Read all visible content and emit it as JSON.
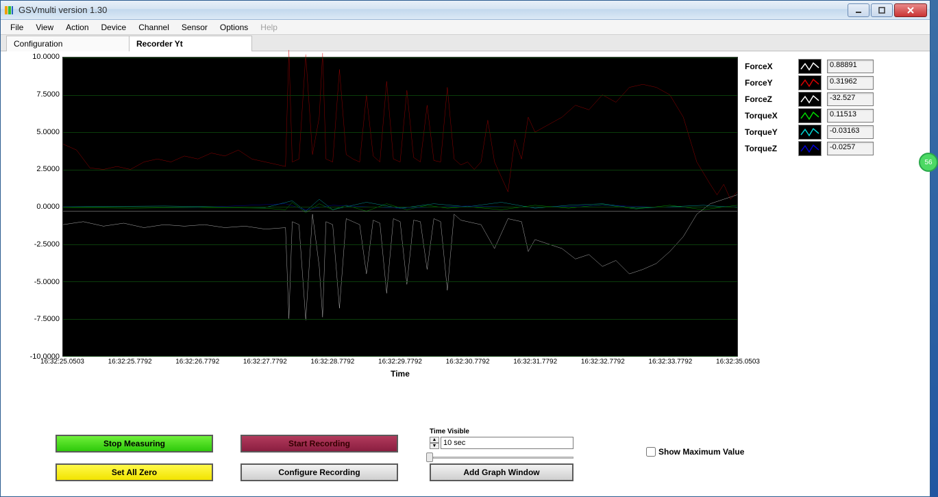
{
  "window": {
    "title": "GSVmulti version 1.30"
  },
  "menu": {
    "items": [
      "File",
      "View",
      "Action",
      "Device",
      "Channel",
      "Sensor",
      "Options",
      "Help"
    ],
    "disabled_index": 7
  },
  "tabs": {
    "items": [
      "Configuration",
      "Recorder Yt"
    ],
    "active_index": 1
  },
  "chart": {
    "type": "line",
    "background_color": "#000000",
    "grid_color": "#0b3d0b",
    "xlabel": "Time",
    "ylim": [
      -10,
      10
    ],
    "ytick_step": 2.5,
    "yticks": [
      "10.0000",
      "7.5000",
      "5.0000",
      "2.5000",
      "0.0000",
      "-2.5000",
      "-5.0000",
      "-7.5000",
      "-10.0000"
    ],
    "xticks": [
      "16:32:25.0503",
      "16:32:25.7792",
      "16:32:26.7792",
      "16:32:27.7792",
      "16:32:28.7792",
      "16:32:29.7792",
      "16:32:30.7792",
      "16:32:31.7792",
      "16:32:32.7792",
      "16:32:33.7792",
      "16:32:35.0503"
    ],
    "series": [
      {
        "name": "ForceX",
        "color": "#ffffff",
        "value": "0.88891",
        "points": [
          [
            0,
            -1.2
          ],
          [
            3,
            -1.0
          ],
          [
            6,
            -1.3
          ],
          [
            9,
            -1.1
          ],
          [
            12,
            -1.4
          ],
          [
            15,
            -1.2
          ],
          [
            18,
            -1.3
          ],
          [
            21,
            -1.2
          ],
          [
            24,
            -1.4
          ],
          [
            27,
            -1.3
          ],
          [
            30,
            -1.5
          ],
          [
            33,
            -1.4
          ],
          [
            33.5,
            -7.5
          ],
          [
            34,
            -1.0
          ],
          [
            35,
            -1.2
          ],
          [
            36,
            -7.6
          ],
          [
            37,
            -0.5
          ],
          [
            38,
            -4.0
          ],
          [
            38.5,
            -7.4
          ],
          [
            39,
            -1.0
          ],
          [
            40,
            -1.2
          ],
          [
            41,
            -6.8
          ],
          [
            42,
            -0.8
          ],
          [
            43,
            -1.0
          ],
          [
            44,
            -1.2
          ],
          [
            45,
            -4.5
          ],
          [
            46,
            -0.9
          ],
          [
            47,
            -1.1
          ],
          [
            48,
            -5.8
          ],
          [
            49,
            -0.8
          ],
          [
            50,
            -1.0
          ],
          [
            51,
            -5.2
          ],
          [
            52,
            -0.9
          ],
          [
            53,
            -1.0
          ],
          [
            54,
            -4.2
          ],
          [
            55,
            -0.8
          ],
          [
            56,
            -1.0
          ],
          [
            57,
            -5.6
          ],
          [
            58,
            -0.5
          ],
          [
            59,
            -0.9
          ],
          [
            60,
            -1.0
          ],
          [
            62,
            -1.2
          ],
          [
            64,
            -2.8
          ],
          [
            66,
            -0.8
          ],
          [
            68,
            -1.0
          ],
          [
            69,
            -3.0
          ],
          [
            70,
            -2.2
          ],
          [
            72,
            -2.5
          ],
          [
            74,
            -2.8
          ],
          [
            76,
            -3.5
          ],
          [
            78,
            -3.2
          ],
          [
            80,
            -4.0
          ],
          [
            82,
            -3.6
          ],
          [
            84,
            -4.5
          ],
          [
            86,
            -4.2
          ],
          [
            88,
            -3.8
          ],
          [
            90,
            -3.0
          ],
          [
            92,
            -2.0
          ],
          [
            94,
            -0.5
          ],
          [
            96,
            0.2
          ],
          [
            98,
            0.5
          ],
          [
            100,
            0.8
          ]
        ]
      },
      {
        "name": "ForceY",
        "color": "#d80000",
        "value": "0.31962",
        "points": [
          [
            0,
            4.2
          ],
          [
            2,
            3.8
          ],
          [
            4,
            2.6
          ],
          [
            6,
            2.5
          ],
          [
            8,
            2.7
          ],
          [
            10,
            2.5
          ],
          [
            12,
            3.0
          ],
          [
            14,
            3.2
          ],
          [
            16,
            3.0
          ],
          [
            18,
            3.4
          ],
          [
            20,
            3.2
          ],
          [
            22,
            3.6
          ],
          [
            24,
            3.4
          ],
          [
            26,
            3.8
          ],
          [
            28,
            3.2
          ],
          [
            30,
            3.0
          ],
          [
            32,
            2.8
          ],
          [
            33,
            2.7
          ],
          [
            33.5,
            10.5
          ],
          [
            34,
            3.0
          ],
          [
            35,
            3.2
          ],
          [
            36,
            10.2
          ],
          [
            37,
            3.5
          ],
          [
            38,
            6.0
          ],
          [
            38.5,
            10.3
          ],
          [
            39,
            3.2
          ],
          [
            40,
            3.0
          ],
          [
            41,
            9.2
          ],
          [
            42,
            3.5
          ],
          [
            43,
            3.2
          ],
          [
            44,
            3.0
          ],
          [
            45,
            7.5
          ],
          [
            46,
            3.4
          ],
          [
            47,
            3.0
          ],
          [
            48,
            8.4
          ],
          [
            49,
            3.2
          ],
          [
            50,
            3.0
          ],
          [
            51,
            7.8
          ],
          [
            52,
            3.3
          ],
          [
            53,
            3.0
          ],
          [
            54,
            6.8
          ],
          [
            55,
            3.1
          ],
          [
            56,
            3.0
          ],
          [
            57,
            8.0
          ],
          [
            58,
            3.2
          ],
          [
            59,
            2.8
          ],
          [
            60,
            3.0
          ],
          [
            61,
            2.5
          ],
          [
            62,
            3.0
          ],
          [
            63,
            5.8
          ],
          [
            64,
            3.0
          ],
          [
            65,
            2.0
          ],
          [
            66,
            1.0
          ],
          [
            67,
            4.5
          ],
          [
            68,
            3.2
          ],
          [
            69,
            6.0
          ],
          [
            70,
            5.0
          ],
          [
            72,
            5.5
          ],
          [
            74,
            6.0
          ],
          [
            76,
            6.8
          ],
          [
            78,
            6.5
          ],
          [
            80,
            7.5
          ],
          [
            82,
            7.0
          ],
          [
            84,
            8.0
          ],
          [
            86,
            8.2
          ],
          [
            88,
            8.0
          ],
          [
            90,
            7.5
          ],
          [
            92,
            6.0
          ],
          [
            94,
            3.0
          ],
          [
            96,
            1.5
          ],
          [
            97,
            0.8
          ],
          [
            98,
            1.5
          ],
          [
            99,
            0.5
          ],
          [
            100,
            1.0
          ]
        ]
      },
      {
        "name": "ForceZ",
        "color": "#ffffff",
        "value": "-32.527",
        "points": [
          [
            0,
            -0.3
          ],
          [
            100,
            -0.3
          ]
        ]
      },
      {
        "name": "TorqueX",
        "color": "#00d800",
        "value": "0.11513",
        "points": [
          [
            0,
            -0.05
          ],
          [
            10,
            -0.1
          ],
          [
            20,
            -0.05
          ],
          [
            30,
            -0.1
          ],
          [
            33,
            -0.2
          ],
          [
            34,
            0.3
          ],
          [
            36,
            -0.4
          ],
          [
            38,
            0.2
          ],
          [
            40,
            -0.2
          ],
          [
            42,
            0.1
          ],
          [
            45,
            -0.3
          ],
          [
            48,
            0.2
          ],
          [
            51,
            -0.2
          ],
          [
            54,
            0.1
          ],
          [
            57,
            -0.1
          ],
          [
            60,
            0.0
          ],
          [
            65,
            -0.2
          ],
          [
            70,
            0.1
          ],
          [
            75,
            -0.1
          ],
          [
            80,
            0.15
          ],
          [
            85,
            -0.15
          ],
          [
            90,
            0.1
          ],
          [
            95,
            -0.2
          ],
          [
            100,
            0.1
          ]
        ]
      },
      {
        "name": "TorqueY",
        "color": "#00d8d8",
        "value": "-0.03163",
        "points": [
          [
            0,
            0.0
          ],
          [
            15,
            0.05
          ],
          [
            30,
            -0.05
          ],
          [
            34,
            0.4
          ],
          [
            36,
            -0.3
          ],
          [
            38,
            0.5
          ],
          [
            40,
            -0.2
          ],
          [
            45,
            0.3
          ],
          [
            50,
            -0.1
          ],
          [
            55,
            0.2
          ],
          [
            60,
            0.0
          ],
          [
            65,
            0.3
          ],
          [
            70,
            -0.1
          ],
          [
            75,
            0.1
          ],
          [
            80,
            0.2
          ],
          [
            85,
            -0.1
          ],
          [
            90,
            0.0
          ],
          [
            95,
            0.1
          ],
          [
            100,
            -0.05
          ]
        ]
      },
      {
        "name": "TorqueZ",
        "color": "#0000d8",
        "value": "-0.0257",
        "points": [
          [
            0,
            0.0
          ],
          [
            20,
            -0.05
          ],
          [
            33,
            0.2
          ],
          [
            36,
            -0.2
          ],
          [
            40,
            0.1
          ],
          [
            50,
            -0.1
          ],
          [
            60,
            0.05
          ],
          [
            70,
            -0.05
          ],
          [
            80,
            0.1
          ],
          [
            90,
            -0.05
          ],
          [
            100,
            0.0
          ]
        ]
      }
    ]
  },
  "controls": {
    "stop_measuring": "Stop Measuring",
    "start_recording": "Start Recording",
    "set_all_zero": "Set All Zero",
    "configure_recording": "Configure Recording",
    "add_graph_window": "Add Graph Window",
    "time_visible_label": "Time Visible",
    "time_visible_value": "10 sec",
    "show_max_label": "Show Maximum Value",
    "show_max_checked": false
  },
  "sidebadge": "56"
}
